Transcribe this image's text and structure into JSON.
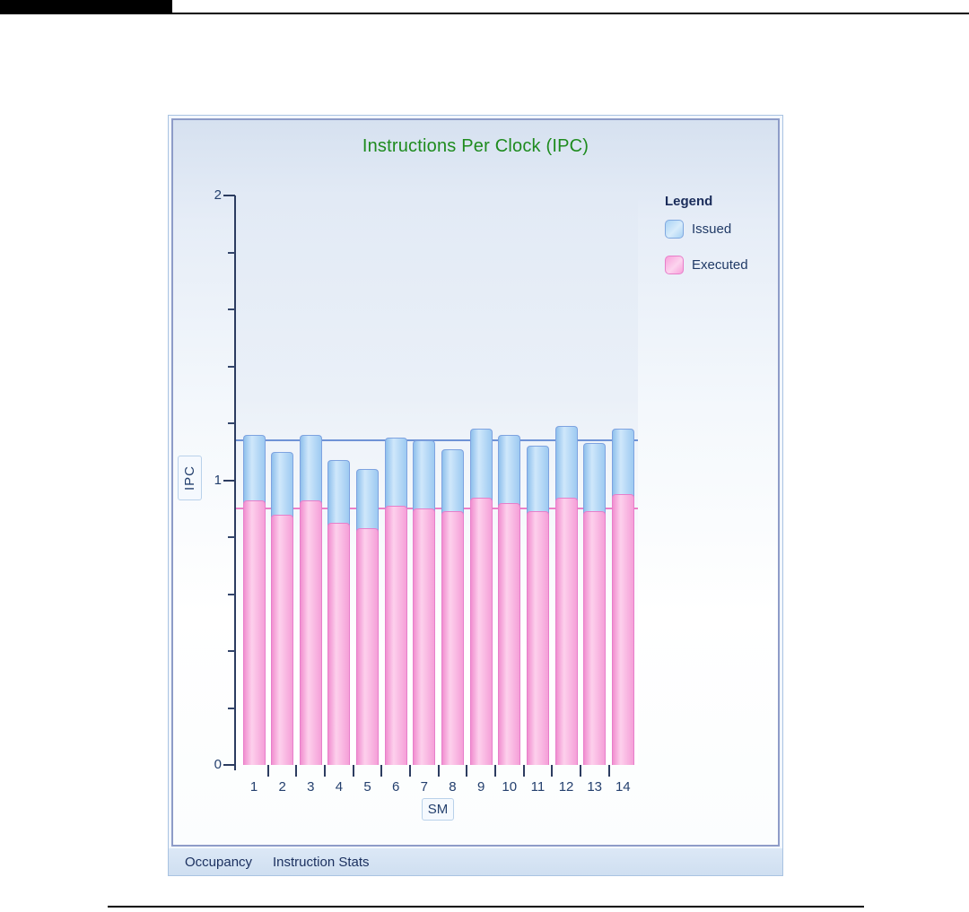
{
  "page": {
    "header_bar_color": "#000000"
  },
  "panel": {
    "tabs": [
      {
        "label": "Occupancy"
      },
      {
        "label": "Instruction Stats"
      }
    ]
  },
  "legend": {
    "title": "Legend",
    "items": [
      {
        "label": "Issued",
        "color": "#a8d2f4",
        "border": "#7fa8e0"
      },
      {
        "label": "Executed",
        "color": "#f8a0da",
        "border": "#e77fca"
      }
    ]
  },
  "chart_data": {
    "type": "bar",
    "title": "Instructions Per Clock (IPC)",
    "title_color": "#1e8b1e",
    "xlabel": "SM",
    "ylabel": "IPC",
    "ylim": [
      0,
      2
    ],
    "y_tick_labels": [
      "0",
      "1",
      "2"
    ],
    "y_major_values": [
      0,
      1,
      2
    ],
    "y_minor_step": 0.2,
    "grid": false,
    "legend_position": "right",
    "categories": [
      "1",
      "2",
      "3",
      "4",
      "5",
      "6",
      "7",
      "8",
      "9",
      "10",
      "11",
      "12",
      "13",
      "14"
    ],
    "series": [
      {
        "name": "Issued",
        "color": "#9dcaf1",
        "border": "#7ea3e0",
        "values": [
          1.16,
          1.1,
          1.16,
          1.07,
          1.04,
          1.15,
          1.14,
          1.11,
          1.18,
          1.16,
          1.12,
          1.19,
          1.13,
          1.18
        ]
      },
      {
        "name": "Executed",
        "color": "#f59fd8",
        "border": "#e77fca",
        "values": [
          0.93,
          0.88,
          0.93,
          0.85,
          0.83,
          0.91,
          0.9,
          0.89,
          0.94,
          0.92,
          0.89,
          0.94,
          0.89,
          0.95
        ]
      }
    ],
    "reference_lines": [
      {
        "series": "Issued",
        "value": 1.14,
        "color": "#6f93d6"
      },
      {
        "series": "Executed",
        "value": 0.9,
        "color": "#ec7fc8"
      }
    ]
  }
}
